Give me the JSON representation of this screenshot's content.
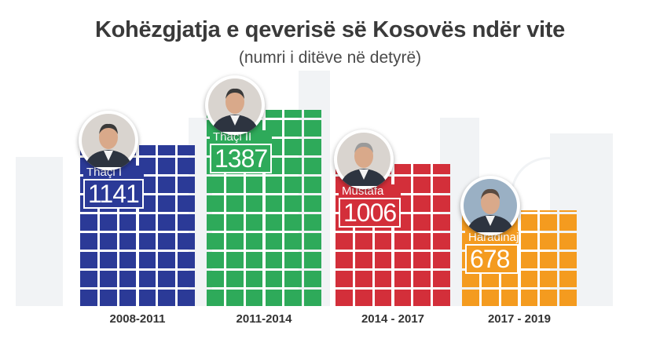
{
  "title": "Kohëzgjatja e qeverisë së Kosovës ndër vite",
  "subtitle": "(numri i ditëve në detyrë)",
  "chart_data": {
    "type": "bar",
    "categories": [
      "2008-2011",
      "2011-2014",
      "2014 - 2017",
      "2017 - 2019"
    ],
    "series": [
      {
        "values": [
          1141,
          1387,
          1006,
          678
        ]
      }
    ],
    "bar_labels": [
      "Thaçi I",
      "Thaçi II",
      "Mustafa",
      "Haradinaj"
    ],
    "colors": [
      "#2b3a97",
      "#2eaa5a",
      "#d32f3a",
      "#f49b1f"
    ],
    "xlabel": "",
    "ylabel": "",
    "grid": false,
    "legend": "none",
    "icons": [
      "portrait-thaci",
      "portrait-thaci",
      "portrait-mustafa",
      "portrait-haradinaj"
    ]
  }
}
